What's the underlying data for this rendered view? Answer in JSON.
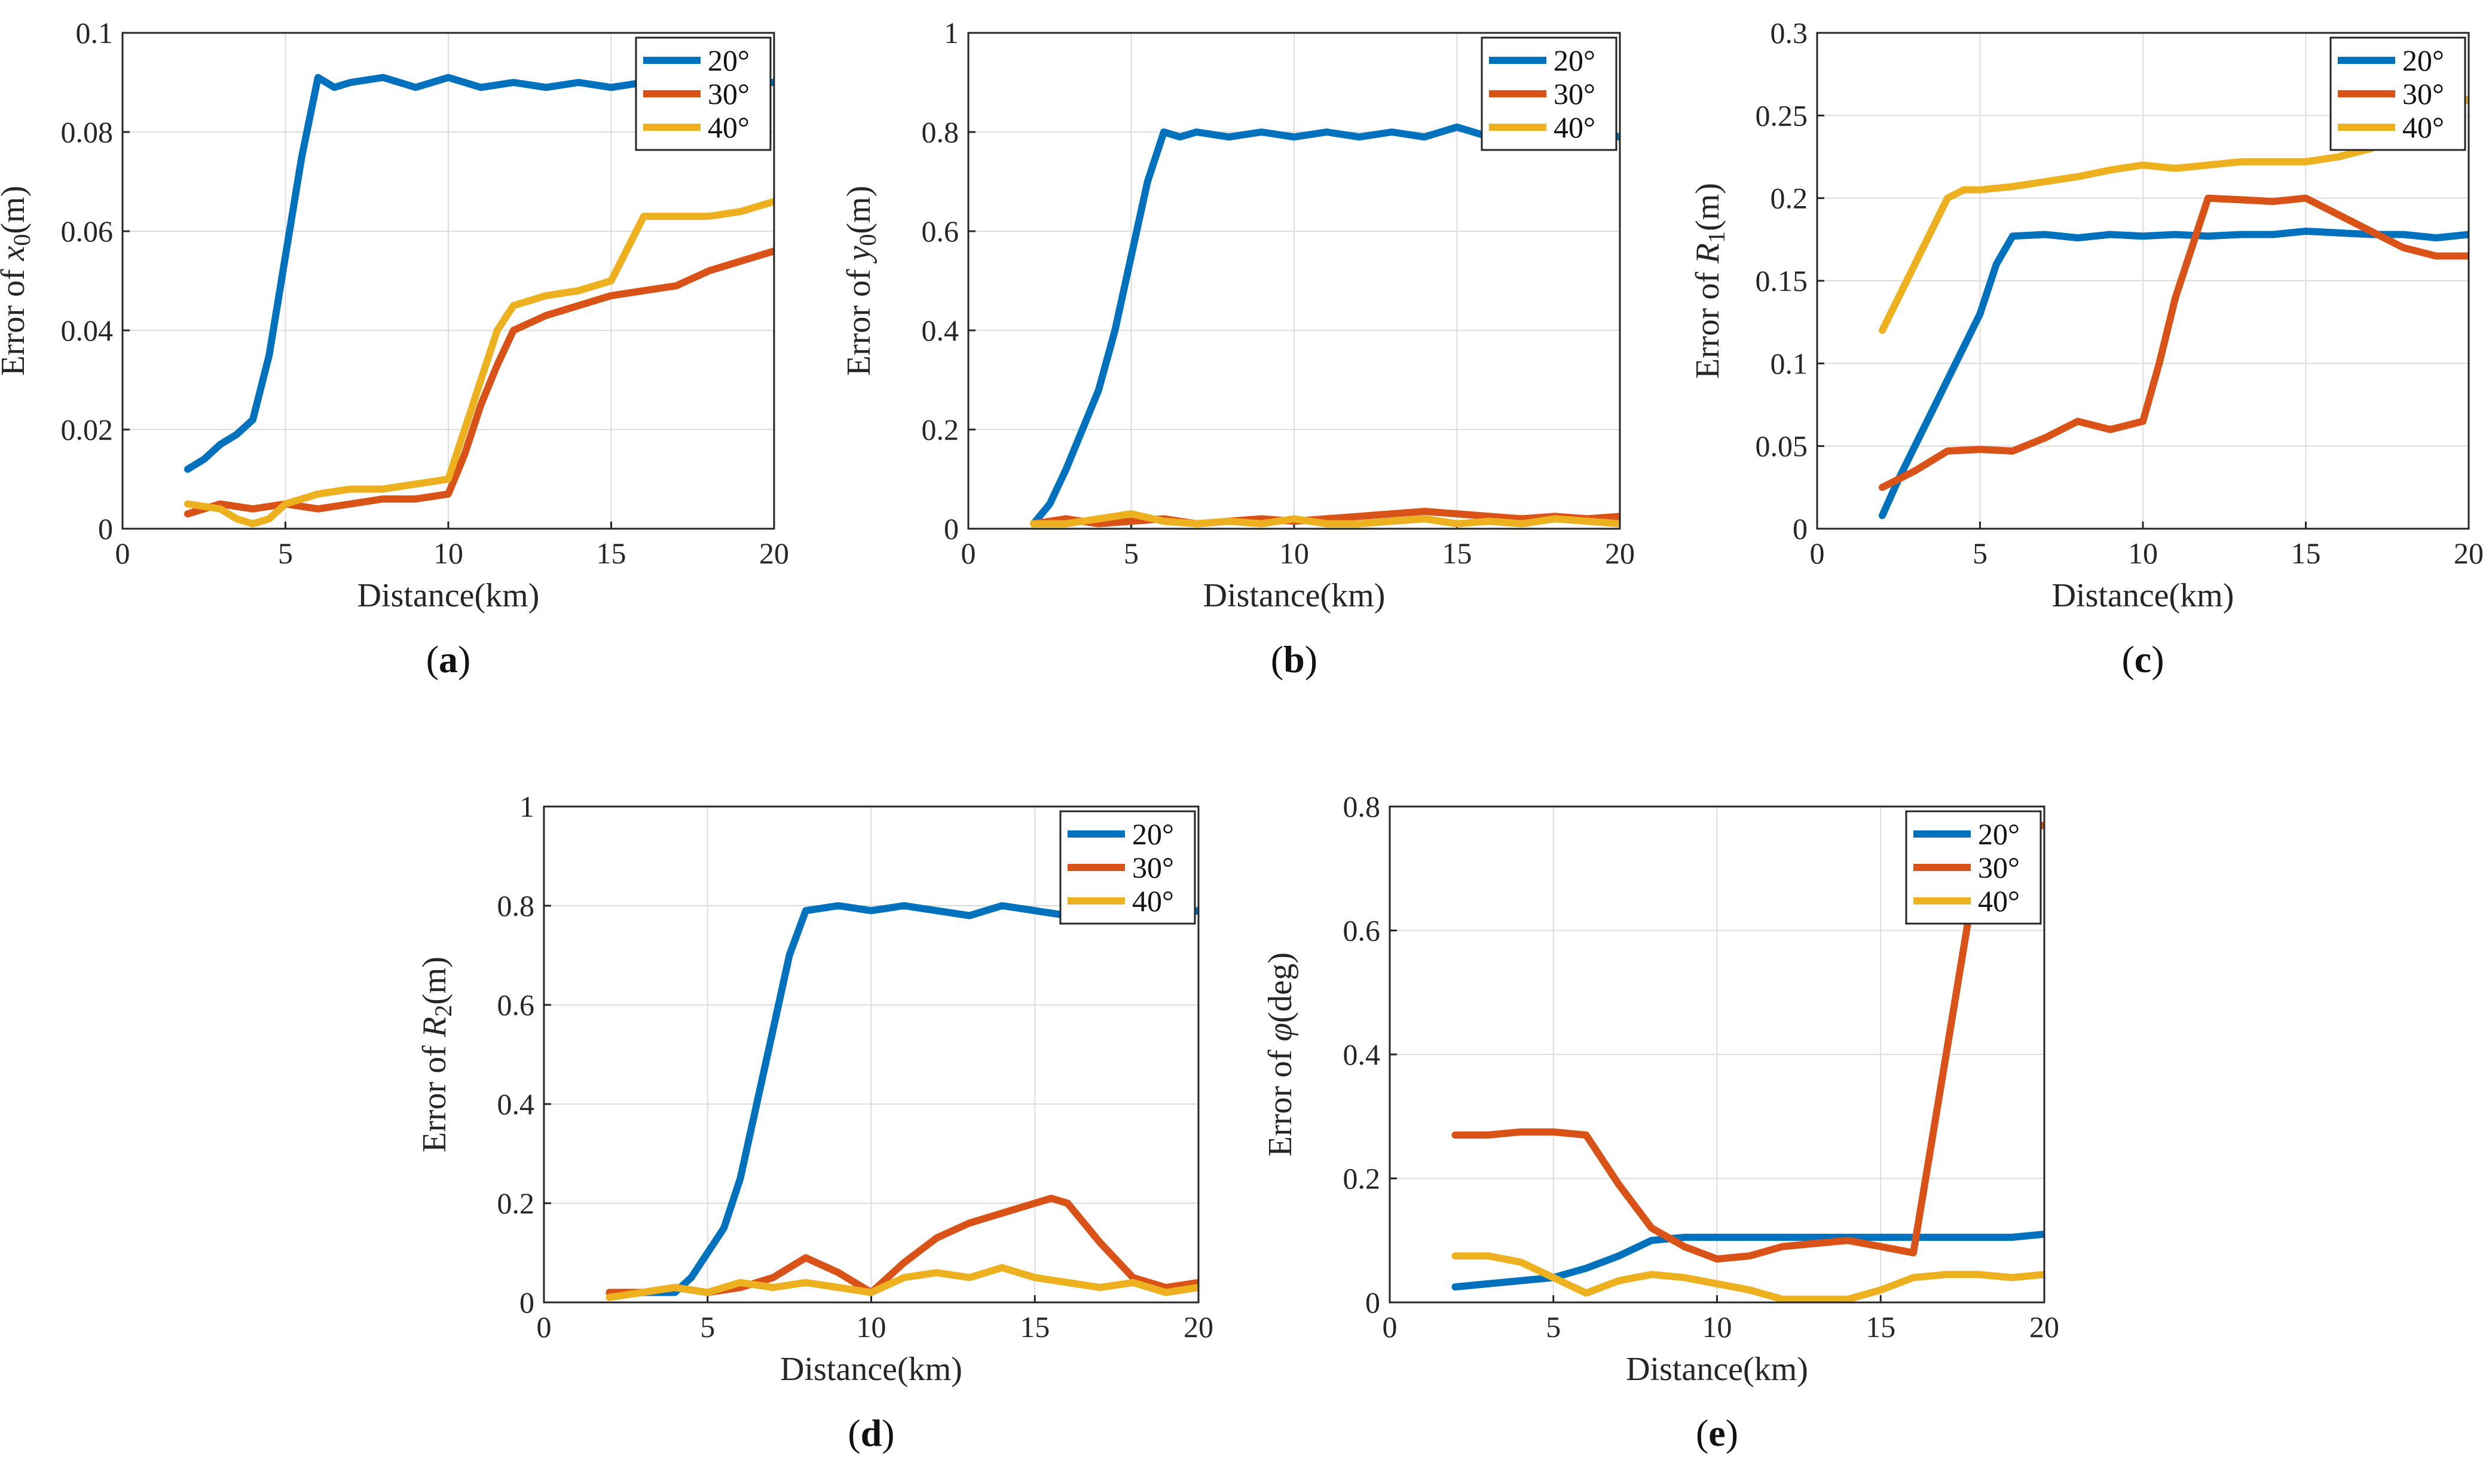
{
  "colors": {
    "s20": "#0072BD",
    "s30": "#D95319",
    "s40": "#EDB120"
  },
  "chart_data": [
    {
      "type": "line",
      "panel_prefix": "(",
      "panel_letter": "a",
      "panel_suffix": ")",
      "xlabel": "Distance(km)",
      "ylabel_prefix": "Error of ",
      "ylabel_symbol": "x",
      "ylabel_sub": "0",
      "ylabel_unit": "(m)",
      "xlim": [
        0,
        20
      ],
      "ylim": [
        0,
        0.1
      ],
      "xticks": [
        0,
        5,
        10,
        15,
        20
      ],
      "xtick_labels": [
        "0",
        "5",
        "10",
        "15",
        "20"
      ],
      "yticks": [
        0,
        0.02,
        0.04,
        0.06,
        0.08,
        0.1
      ],
      "ytick_labels": [
        "0",
        "0.02",
        "0.04",
        "0.06",
        "0.08",
        "0.1"
      ],
      "legend_position": "top-right",
      "grid": true,
      "series": [
        {
          "name": "20°",
          "color_key": "s20",
          "x": [
            2,
            2.5,
            3,
            3.5,
            4,
            4.5,
            5,
            5.5,
            6,
            6.5,
            7,
            8,
            9,
            10,
            11,
            12,
            13,
            14,
            15,
            16,
            17,
            18,
            19,
            20
          ],
          "values": [
            0.012,
            0.014,
            0.017,
            0.019,
            0.022,
            0.035,
            0.055,
            0.075,
            0.091,
            0.089,
            0.09,
            0.091,
            0.089,
            0.091,
            0.089,
            0.09,
            0.089,
            0.09,
            0.089,
            0.09,
            0.09,
            0.089,
            0.09,
            0.09
          ]
        },
        {
          "name": "30°",
          "color_key": "s30",
          "x": [
            2,
            3,
            4,
            5,
            6,
            7,
            8,
            9,
            10,
            10.5,
            11,
            11.5,
            12,
            13,
            14,
            15,
            16,
            17,
            18,
            19,
            20
          ],
          "values": [
            0.003,
            0.005,
            0.004,
            0.005,
            0.004,
            0.005,
            0.006,
            0.006,
            0.007,
            0.015,
            0.025,
            0.033,
            0.04,
            0.043,
            0.045,
            0.047,
            0.048,
            0.049,
            0.052,
            0.054,
            0.056
          ]
        },
        {
          "name": "40°",
          "color_key": "s40",
          "x": [
            2,
            3,
            3.5,
            4,
            4.5,
            5,
            6,
            7,
            8,
            9,
            10,
            10.5,
            11,
            11.5,
            12,
            13,
            14,
            15,
            16,
            17,
            18,
            19,
            20
          ],
          "values": [
            0.005,
            0.004,
            0.002,
            0.001,
            0.002,
            0.005,
            0.007,
            0.008,
            0.008,
            0.009,
            0.01,
            0.02,
            0.03,
            0.04,
            0.045,
            0.047,
            0.048,
            0.05,
            0.063,
            0.063,
            0.063,
            0.064,
            0.066
          ]
        }
      ]
    },
    {
      "type": "line",
      "panel_prefix": "(",
      "panel_letter": "b",
      "panel_suffix": ")",
      "xlabel": "Distance(km)",
      "ylabel_prefix": "Error of ",
      "ylabel_symbol": "y",
      "ylabel_sub": "0",
      "ylabel_unit": "(m)",
      "xlim": [
        0,
        20
      ],
      "ylim": [
        0,
        1
      ],
      "xticks": [
        0,
        5,
        10,
        15,
        20
      ],
      "xtick_labels": [
        "0",
        "5",
        "10",
        "15",
        "20"
      ],
      "yticks": [
        0,
        0.2,
        0.4,
        0.6,
        0.8,
        1
      ],
      "ytick_labels": [
        "0",
        "0.2",
        "0.4",
        "0.6",
        "0.8",
        "1"
      ],
      "legend_position": "top-right",
      "grid": true,
      "series": [
        {
          "name": "20°",
          "color_key": "s20",
          "x": [
            2,
            2.5,
            3,
            3.5,
            4,
            4.5,
            5,
            5.5,
            6,
            6.5,
            7,
            8,
            9,
            10,
            11,
            12,
            13,
            14,
            15,
            16,
            17,
            18,
            19,
            20
          ],
          "values": [
            0.01,
            0.05,
            0.12,
            0.2,
            0.28,
            0.4,
            0.55,
            0.7,
            0.8,
            0.79,
            0.8,
            0.79,
            0.8,
            0.79,
            0.8,
            0.79,
            0.8,
            0.79,
            0.81,
            0.79,
            0.8,
            0.79,
            0.8,
            0.79
          ]
        },
        {
          "name": "30°",
          "color_key": "s30",
          "x": [
            2,
            3,
            4,
            5,
            6,
            7,
            8,
            9,
            10,
            11,
            12,
            13,
            14,
            15,
            16,
            17,
            18,
            19,
            20
          ],
          "values": [
            0.01,
            0.02,
            0.01,
            0.015,
            0.02,
            0.01,
            0.015,
            0.02,
            0.015,
            0.02,
            0.025,
            0.03,
            0.035,
            0.03,
            0.025,
            0.02,
            0.025,
            0.02,
            0.025
          ]
        },
        {
          "name": "40°",
          "color_key": "s40",
          "x": [
            2,
            3,
            4,
            5,
            6,
            7,
            8,
            9,
            10,
            11,
            12,
            13,
            14,
            15,
            16,
            17,
            18,
            19,
            20
          ],
          "values": [
            0.01,
            0.01,
            0.02,
            0.03,
            0.015,
            0.01,
            0.015,
            0.01,
            0.02,
            0.01,
            0.01,
            0.015,
            0.02,
            0.01,
            0.015,
            0.01,
            0.02,
            0.015,
            0.01
          ]
        }
      ]
    },
    {
      "type": "line",
      "panel_prefix": "(",
      "panel_letter": "c",
      "panel_suffix": ")",
      "xlabel": "Distance(km)",
      "ylabel_prefix": "Error of ",
      "ylabel_symbol": "R",
      "ylabel_sub": "1",
      "ylabel_unit": "(m)",
      "xlim": [
        0,
        20
      ],
      "ylim": [
        0,
        0.3
      ],
      "xticks": [
        0,
        5,
        10,
        15,
        20
      ],
      "xtick_labels": [
        "0",
        "5",
        "10",
        "15",
        "20"
      ],
      "yticks": [
        0,
        0.05,
        0.1,
        0.15,
        0.2,
        0.25,
        0.3
      ],
      "ytick_labels": [
        "0",
        "0.05",
        "0.1",
        "0.15",
        "0.2",
        "0.25",
        "0.3"
      ],
      "legend_position": "top-right",
      "grid": true,
      "series": [
        {
          "name": "20°",
          "color_key": "s20",
          "x": [
            2,
            2.5,
            3,
            3.5,
            4,
            4.5,
            5,
            5.5,
            6,
            7,
            8,
            9,
            10,
            11,
            12,
            13,
            14,
            15,
            16,
            17,
            18,
            19,
            20
          ],
          "values": [
            0.008,
            0.03,
            0.05,
            0.07,
            0.09,
            0.11,
            0.13,
            0.16,
            0.177,
            0.178,
            0.176,
            0.178,
            0.177,
            0.178,
            0.177,
            0.178,
            0.178,
            0.18,
            0.179,
            0.178,
            0.178,
            0.176,
            0.178
          ]
        },
        {
          "name": "30°",
          "color_key": "s30",
          "x": [
            2,
            3,
            4,
            5,
            6,
            7,
            8,
            9,
            10,
            10.5,
            11,
            11.5,
            12,
            13,
            14,
            15,
            16,
            17,
            18,
            19,
            20
          ],
          "values": [
            0.025,
            0.035,
            0.047,
            0.048,
            0.047,
            0.055,
            0.065,
            0.06,
            0.065,
            0.1,
            0.14,
            0.17,
            0.2,
            0.199,
            0.198,
            0.2,
            0.19,
            0.18,
            0.17,
            0.165,
            0.165
          ]
        },
        {
          "name": "40°",
          "color_key": "s40",
          "x": [
            2,
            2.5,
            3,
            3.5,
            4,
            4.5,
            5,
            6,
            7,
            8,
            9,
            10,
            11,
            12,
            13,
            14,
            15,
            16,
            17,
            18,
            19,
            20
          ],
          "values": [
            0.12,
            0.14,
            0.16,
            0.18,
            0.2,
            0.205,
            0.205,
            0.207,
            0.21,
            0.213,
            0.217,
            0.22,
            0.218,
            0.22,
            0.222,
            0.222,
            0.222,
            0.225,
            0.23,
            0.24,
            0.25,
            0.26
          ]
        }
      ]
    },
    {
      "type": "line",
      "panel_prefix": "(",
      "panel_letter": "d",
      "panel_suffix": ")",
      "xlabel": "Distance(km)",
      "ylabel_prefix": "Error of ",
      "ylabel_symbol": "R",
      "ylabel_sub": "2",
      "ylabel_unit": "(m)",
      "xlim": [
        0,
        20
      ],
      "ylim": [
        0,
        1
      ],
      "xticks": [
        0,
        5,
        10,
        15,
        20
      ],
      "xtick_labels": [
        "0",
        "5",
        "10",
        "15",
        "20"
      ],
      "yticks": [
        0,
        0.2,
        0.4,
        0.6,
        0.8,
        1
      ],
      "ytick_labels": [
        "0",
        "0.2",
        "0.4",
        "0.6",
        "0.8",
        "1"
      ],
      "legend_position": "top-right",
      "grid": true,
      "series": [
        {
          "name": "20°",
          "color_key": "s20",
          "x": [
            2,
            3,
            4,
            4.5,
            5,
            5.5,
            6,
            6.5,
            7,
            7.5,
            8,
            9,
            10,
            11,
            12,
            13,
            14,
            15,
            16,
            17,
            18,
            19,
            20
          ],
          "values": [
            0.02,
            0.02,
            0.02,
            0.05,
            0.1,
            0.15,
            0.25,
            0.4,
            0.55,
            0.7,
            0.79,
            0.8,
            0.79,
            0.8,
            0.79,
            0.78,
            0.8,
            0.79,
            0.78,
            0.79,
            0.8,
            0.78,
            0.79
          ]
        },
        {
          "name": "30°",
          "color_key": "s30",
          "x": [
            2,
            3,
            4,
            5,
            6,
            7,
            8,
            9,
            10,
            11,
            12,
            13,
            14,
            15,
            15.5,
            16,
            17,
            18,
            19,
            20
          ],
          "values": [
            0.02,
            0.02,
            0.03,
            0.02,
            0.03,
            0.05,
            0.09,
            0.06,
            0.02,
            0.08,
            0.13,
            0.16,
            0.18,
            0.2,
            0.21,
            0.2,
            0.12,
            0.05,
            0.03,
            0.04
          ]
        },
        {
          "name": "40°",
          "color_key": "s40",
          "x": [
            2,
            3,
            4,
            5,
            6,
            7,
            8,
            9,
            10,
            11,
            12,
            13,
            14,
            15,
            16,
            17,
            18,
            19,
            20
          ],
          "values": [
            0.01,
            0.02,
            0.03,
            0.02,
            0.04,
            0.03,
            0.04,
            0.03,
            0.02,
            0.05,
            0.06,
            0.05,
            0.07,
            0.05,
            0.04,
            0.03,
            0.04,
            0.02,
            0.03
          ]
        }
      ]
    },
    {
      "type": "line",
      "panel_prefix": "(",
      "panel_letter": "e",
      "panel_suffix": ")",
      "xlabel": "Distance(km)",
      "ylabel_prefix": "Error of ",
      "ylabel_symbol": "φ",
      "ylabel_sub": "",
      "ylabel_unit": "(deg)",
      "xlim": [
        0,
        20
      ],
      "ylim": [
        0,
        0.8
      ],
      "xticks": [
        0,
        5,
        10,
        15,
        20
      ],
      "xtick_labels": [
        "0",
        "5",
        "10",
        "15",
        "20"
      ],
      "yticks": [
        0,
        0.2,
        0.4,
        0.6,
        0.8
      ],
      "ytick_labels": [
        "0",
        "0.2",
        "0.4",
        "0.6",
        "0.8"
      ],
      "legend_position": "top-right",
      "grid": true,
      "series": [
        {
          "name": "20°",
          "color_key": "s20",
          "x": [
            2,
            3,
            4,
            5,
            6,
            7,
            8,
            9,
            10,
            11,
            12,
            13,
            14,
            15,
            16,
            17,
            18,
            19,
            20
          ],
          "values": [
            0.025,
            0.03,
            0.035,
            0.04,
            0.055,
            0.075,
            0.1,
            0.105,
            0.105,
            0.105,
            0.105,
            0.105,
            0.105,
            0.105,
            0.105,
            0.105,
            0.105,
            0.105,
            0.11
          ]
        },
        {
          "name": "30°",
          "color_key": "s30",
          "x": [
            2,
            3,
            4,
            5,
            6,
            7,
            8,
            9,
            10,
            11,
            12,
            13,
            14,
            15,
            16,
            17,
            18,
            19,
            20
          ],
          "values": [
            0.27,
            0.27,
            0.275,
            0.275,
            0.27,
            0.19,
            0.12,
            0.09,
            0.07,
            0.075,
            0.09,
            0.095,
            0.1,
            0.09,
            0.08,
            0.4,
            0.72,
            0.76,
            0.77
          ]
        },
        {
          "name": "40°",
          "color_key": "s40",
          "x": [
            2,
            3,
            4,
            5,
            6,
            7,
            8,
            9,
            10,
            11,
            12,
            13,
            14,
            15,
            16,
            17,
            18,
            19,
            20
          ],
          "values": [
            0.075,
            0.075,
            0.065,
            0.04,
            0.015,
            0.035,
            0.045,
            0.04,
            0.03,
            0.02,
            0.005,
            0.005,
            0.005,
            0.02,
            0.04,
            0.045,
            0.045,
            0.04,
            0.045
          ]
        }
      ]
    }
  ]
}
